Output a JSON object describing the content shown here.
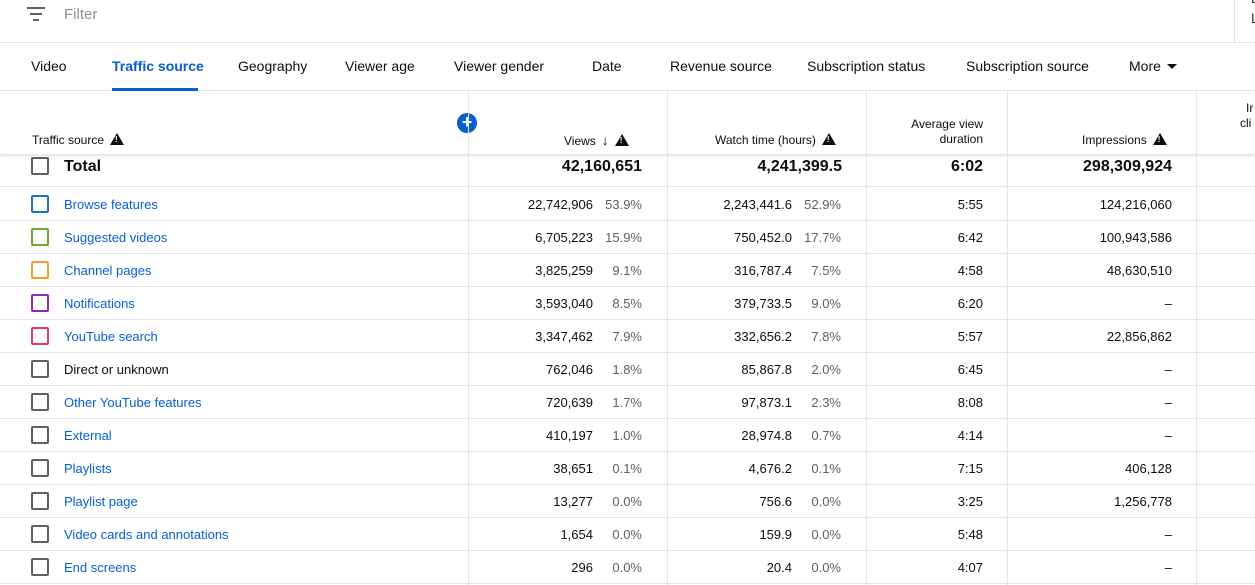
{
  "filter": {
    "placeholder": "Filter"
  },
  "tabs": [
    {
      "label": "Video"
    },
    {
      "label": "Traffic source"
    },
    {
      "label": "Geography"
    },
    {
      "label": "Viewer age"
    },
    {
      "label": "Viewer gender"
    },
    {
      "label": "Date"
    },
    {
      "label": "Revenue source"
    },
    {
      "label": "Subscription status"
    },
    {
      "label": "Subscription source"
    },
    {
      "label": "More"
    }
  ],
  "header": {
    "traffic_source": "Traffic source",
    "views": "Views",
    "watch_time": "Watch time (hours)",
    "avg_view_line1": "Average view",
    "avg_view_line2": "duration",
    "impressions": "Impressions",
    "cut_col_line1": "Ir",
    "cut_col_line2": "cli",
    "add_icon": "+"
  },
  "total": {
    "label": "Total",
    "views": "42,160,651",
    "watch_time": "4,241,399.5",
    "avg_duration": "6:02",
    "impressions": "298,309,924"
  },
  "rows": [
    {
      "label": "Browse features",
      "color": "#1e6fd0",
      "views": "22,742,906",
      "views_pct": "53.9%",
      "watch": "2,243,441.6",
      "watch_pct": "52.9%",
      "dur": "5:55",
      "impr": "124,216,060"
    },
    {
      "label": "Suggested videos",
      "color": "#6aab2c",
      "views": "6,705,223",
      "views_pct": "15.9%",
      "watch": "750,452.0",
      "watch_pct": "17.7%",
      "dur": "6:42",
      "impr": "100,943,586"
    },
    {
      "label": "Channel pages",
      "color": "#f0a028",
      "views": "3,825,259",
      "views_pct": "9.1%",
      "watch": "316,787.4",
      "watch_pct": "7.5%",
      "dur": "4:58",
      "impr": "48,630,510"
    },
    {
      "label": "Notifications",
      "color": "#9c27b0",
      "views": "3,593,040",
      "views_pct": "8.5%",
      "watch": "379,733.5",
      "watch_pct": "9.0%",
      "dur": "6:20",
      "impr": "–"
    },
    {
      "label": "YouTube search",
      "color": "#e0386a",
      "views": "3,347,462",
      "views_pct": "7.9%",
      "watch": "332,656.2",
      "watch_pct": "7.8%",
      "dur": "5:57",
      "impr": "22,856,862"
    },
    {
      "label": "Direct or unknown",
      "color": "#606060",
      "views": "762,046",
      "views_pct": "1.8%",
      "watch": "85,867.8",
      "watch_pct": "2.0%",
      "dur": "6:45",
      "impr": "–"
    },
    {
      "label": "Other YouTube features",
      "color": "#606060",
      "views": "720,639",
      "views_pct": "1.7%",
      "watch": "97,873.1",
      "watch_pct": "2.3%",
      "dur": "8:08",
      "impr": "–"
    },
    {
      "label": "External",
      "color": "#606060",
      "views": "410,197",
      "views_pct": "1.0%",
      "watch": "28,974.8",
      "watch_pct": "0.7%",
      "dur": "4:14",
      "impr": "–"
    },
    {
      "label": "Playlists",
      "color": "#606060",
      "views": "38,651",
      "views_pct": "0.1%",
      "watch": "4,676.2",
      "watch_pct": "0.1%",
      "dur": "7:15",
      "impr": "406,128"
    },
    {
      "label": "Playlist page",
      "color": "#606060",
      "views": "13,277",
      "views_pct": "0.0%",
      "watch": "756.6",
      "watch_pct": "0.0%",
      "dur": "3:25",
      "impr": "1,256,778"
    },
    {
      "label": "Video cards and annotations",
      "color": "#606060",
      "views": "1,654",
      "views_pct": "0.0%",
      "watch": "159.9",
      "watch_pct": "0.0%",
      "dur": "5:48",
      "impr": "–"
    },
    {
      "label": "End screens",
      "color": "#606060",
      "views": "296",
      "views_pct": "0.0%",
      "watch": "20.4",
      "watch_pct": "0.0%",
      "dur": "4:07",
      "impr": "–"
    }
  ],
  "colors": {
    "accent": "#065fd4",
    "link": "#065fd4"
  }
}
